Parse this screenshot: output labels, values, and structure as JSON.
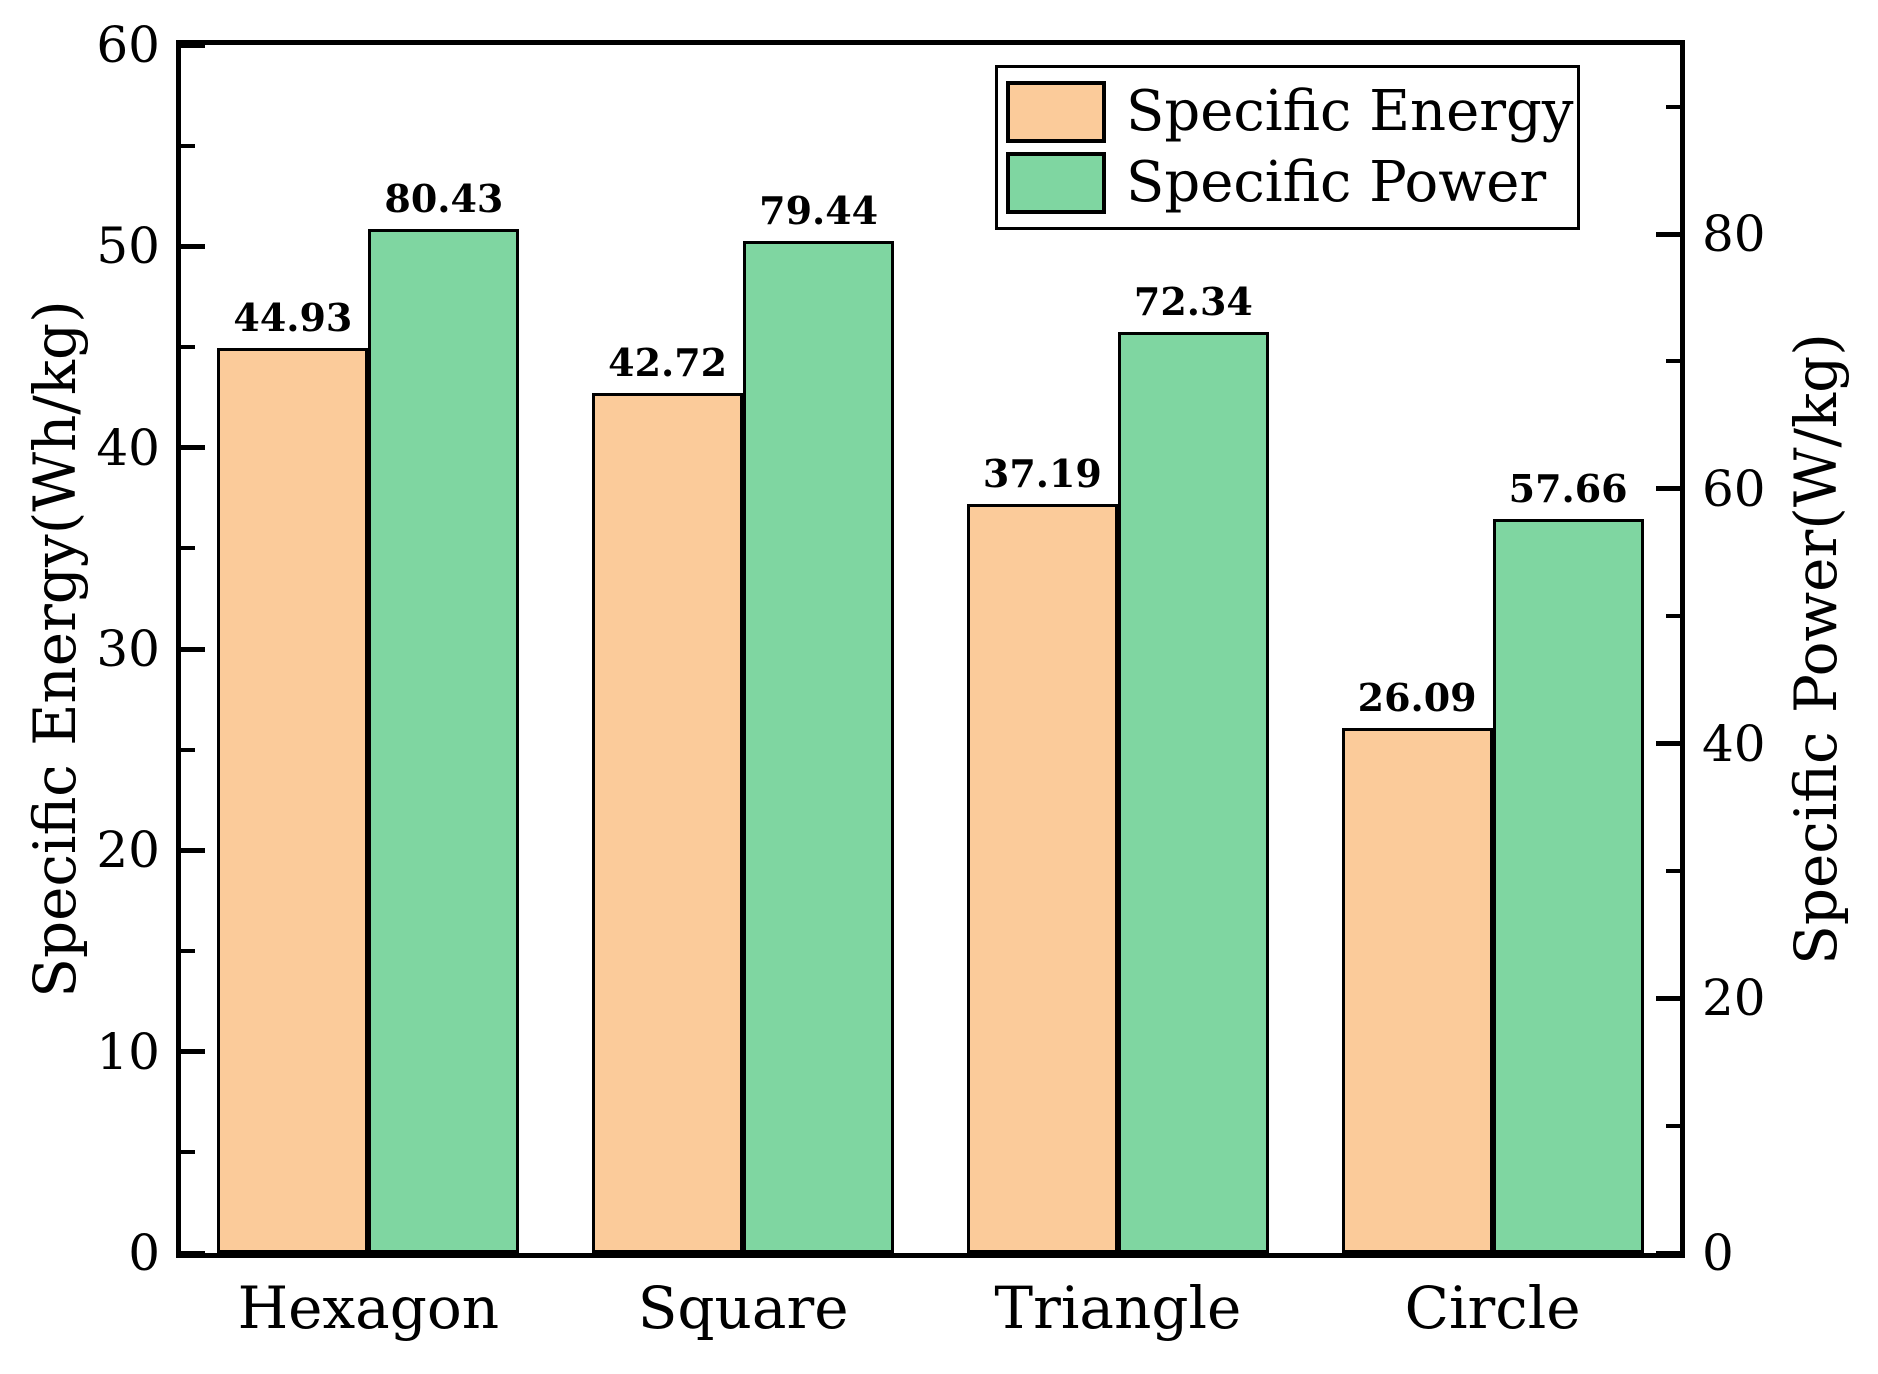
{
  "figure": {
    "background": "#ffffff"
  },
  "chart_data": {
    "type": "bar",
    "categories": [
      "Hexagon",
      "Square",
      "Triangle",
      "Circle"
    ],
    "series": [
      {
        "name": "Specific Energy",
        "axis": "left",
        "color": "#FBCB9A",
        "edge_color": "#000000",
        "values": [
          44.93,
          42.72,
          37.19,
          26.09
        ]
      },
      {
        "name": "Specific Power",
        "axis": "right",
        "color": "#7FD6A1",
        "edge_color": "#000000",
        "values": [
          80.43,
          79.44,
          72.34,
          57.66
        ]
      }
    ],
    "left_axis": {
      "label": "Specific Energy(Wh/kg)",
      "min": 0,
      "max": 60,
      "major_ticks": [
        0,
        10,
        20,
        30,
        40,
        50,
        60
      ],
      "minor_ticks": [
        5,
        15,
        25,
        35,
        45,
        55
      ]
    },
    "right_axis": {
      "label": "Specific Power(W/kg)",
      "min": 0,
      "max": 94.85,
      "major_ticks": [
        0,
        20,
        40,
        60,
        80
      ],
      "minor_ticks": [
        10,
        30,
        50,
        70,
        90
      ]
    },
    "bar_value_labels": {
      "show": true,
      "decimals": 2
    },
    "legend": {
      "position": "top-right-inside",
      "entries": [
        "Specific Energy",
        "Specific Power"
      ]
    },
    "grid": false,
    "frame": true,
    "tick_direction": "in"
  },
  "colors": {
    "axis": "#000000",
    "text": "#000000",
    "bar_edge": "#000000"
  }
}
